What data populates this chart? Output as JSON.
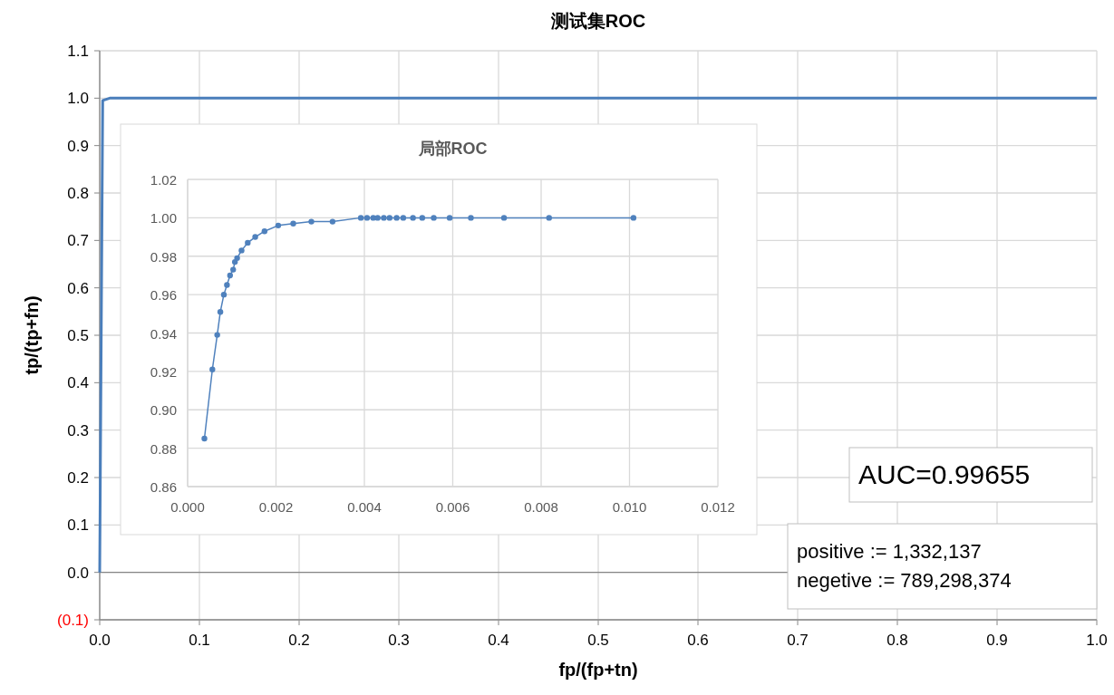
{
  "chart_data": [
    {
      "type": "line",
      "title": "测试集ROC",
      "xlabel": "fp/(fp+tn)",
      "ylabel": "tp/(tp+fn)",
      "x": [
        0,
        0.003,
        0.01,
        1
      ],
      "series": [
        {
          "color": "#4a7ebb",
          "values": [
            0,
            0.995,
            1,
            1
          ]
        }
      ],
      "xlim": [
        0,
        1
      ],
      "ylim": [
        -0.1,
        1.1
      ],
      "xticks": [
        {
          "value": 0,
          "label": "0.0"
        },
        0.1,
        0.2,
        0.3,
        0.4,
        0.5,
        0.6,
        0.7,
        0.8,
        0.9,
        {
          "value": 1,
          "label": "1.0"
        }
      ],
      "yticks": [
        {
          "value": -0.1,
          "label": "(0.1)"
        },
        {
          "value": 0,
          "label": "0.0"
        },
        0.1,
        0.2,
        0.3,
        0.4,
        0.5,
        0.6,
        0.7,
        0.8,
        0.9,
        {
          "value": 1,
          "label": "1.0"
        },
        1.1
      ],
      "grid": true,
      "marker": "none",
      "annotations": [
        "AUC=0.99655",
        "positive := 1,332,137\nnegetive := 789,298,374"
      ]
    },
    {
      "type": "line",
      "title": "局部ROC",
      "x": [
        0.00038,
        0.00056,
        0.00067,
        0.00074,
        0.00082,
        0.00089,
        0.00096,
        0.00103,
        0.00107,
        0.00112,
        0.00122,
        0.00136,
        0.00153,
        0.00174,
        0.00205,
        0.00239,
        0.0028,
        0.00328,
        0.00392,
        0.00406,
        0.0042,
        0.0043,
        0.00444,
        0.00457,
        0.00473,
        0.00488,
        0.0051,
        0.00531,
        0.00557,
        0.00593,
        0.00641,
        0.00716,
        0.00818,
        0.01009
      ],
      "series": [
        {
          "color": "#4f81bd",
          "values": [
            0.885,
            0.921,
            0.939,
            0.951,
            0.96,
            0.965,
            0.97,
            0.973,
            0.977,
            0.979,
            0.983,
            0.987,
            0.99,
            0.993,
            0.996,
            0.997,
            0.998,
            0.998,
            1,
            1,
            1,
            1,
            1,
            1,
            1,
            1,
            1,
            1,
            1,
            1,
            1,
            1,
            1,
            1
          ]
        }
      ],
      "xlim": [
        0,
        0.012
      ],
      "ylim": [
        0.86,
        1.02
      ],
      "xticks": [
        {
          "value": 0,
          "label": "0.000"
        },
        {
          "value": 0.002,
          "label": "0.002"
        },
        {
          "value": 0.004,
          "label": "0.004"
        },
        {
          "value": 0.006,
          "label": "0.006"
        },
        {
          "value": 0.008,
          "label": "0.008"
        },
        {
          "value": 0.01,
          "label": "0.010"
        },
        {
          "value": 0.012,
          "label": "0.012"
        }
      ],
      "yticks": [
        0.86,
        0.88,
        {
          "value": 0.9,
          "label": "0.90"
        },
        0.92,
        0.94,
        0.96,
        0.98,
        {
          "value": 1,
          "label": "1.00"
        },
        1.02
      ],
      "grid": true,
      "marker": "circle"
    }
  ]
}
